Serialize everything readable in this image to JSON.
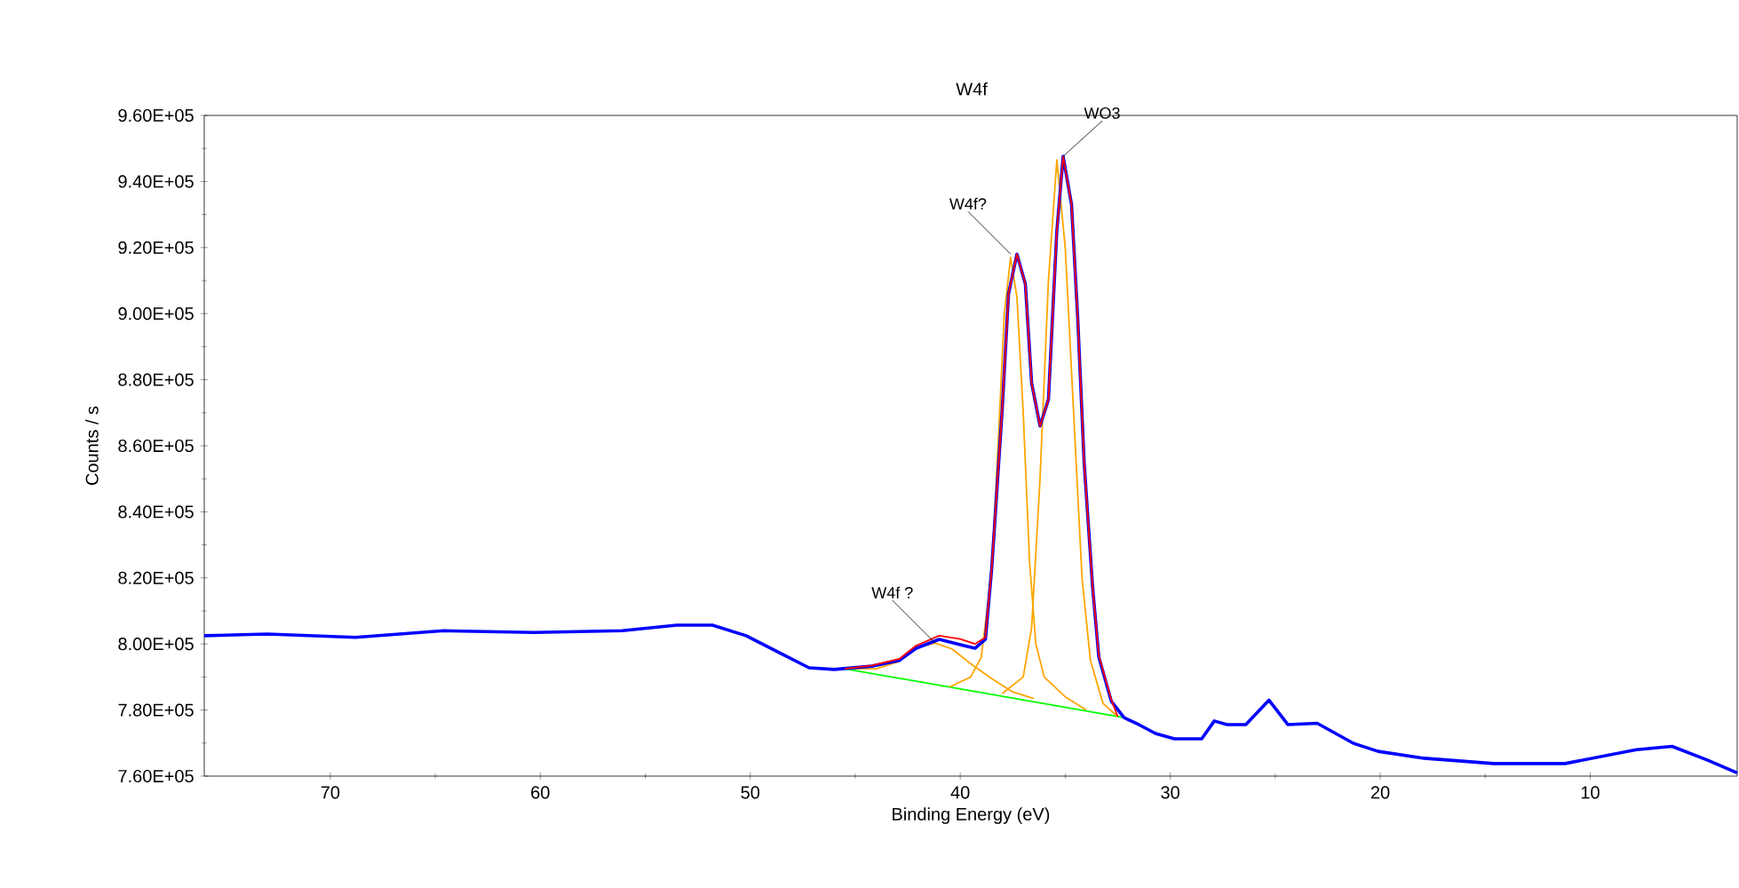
{
  "chart_data": {
    "type": "line",
    "title": "W4f",
    "xlabel": "Binding Energy (eV)",
    "ylabel": "Counts / s",
    "xlim": [
      76,
      3
    ],
    "xticks": [
      70,
      60,
      50,
      40,
      30,
      20,
      10
    ],
    "ylim": [
      760000,
      960000
    ],
    "yticks": [
      {
        "value": 760000,
        "label": "7.60E+05"
      },
      {
        "value": 780000,
        "label": "7.80E+05"
      },
      {
        "value": 800000,
        "label": "8.00E+05"
      },
      {
        "value": 820000,
        "label": "8.20E+05"
      },
      {
        "value": 840000,
        "label": "8.40E+05"
      },
      {
        "value": 860000,
        "label": "8.60E+05"
      },
      {
        "value": 880000,
        "label": "8.80E+05"
      },
      {
        "value": 900000,
        "label": "9.00E+05"
      },
      {
        "value": 920000,
        "label": "9.20E+05"
      },
      {
        "value": 940000,
        "label": "9.40E+05"
      },
      {
        "value": 960000,
        "label": "9.60E+05"
      }
    ],
    "grid": false,
    "marker": "none",
    "line_style": "solid",
    "series": [
      {
        "color": "#00ff00",
        "x": [
          45.5,
          32.2
        ],
        "values": [
          792500,
          777700
        ]
      },
      {
        "color": "#ffa500",
        "x": [
          45.5,
          44,
          43,
          42,
          41.2,
          40.4,
          39.5,
          38.5,
          37.5,
          36.5
        ],
        "values": [
          792500,
          792500,
          794500,
          799000,
          800300,
          798500,
          794000,
          789500,
          785500,
          783500
        ]
      },
      {
        "color": "#ffa500",
        "x": [
          40.5,
          39.5,
          39,
          38.5,
          38.2,
          37.9,
          37.6,
          37.3,
          37,
          36.7,
          36.4,
          36,
          35,
          34
        ],
        "values": [
          787000,
          790000,
          796000,
          822000,
          860000,
          900000,
          917000,
          905000,
          870000,
          825000,
          800000,
          790000,
          784000,
          780000
        ]
      },
      {
        "color": "#ffa500",
        "x": [
          38,
          37,
          36.6,
          36.2,
          35.8,
          35.4,
          35,
          34.6,
          34.2,
          33.8,
          33.2,
          32.5
        ],
        "values": [
          785000,
          790000,
          805000,
          850000,
          910000,
          946500,
          920000,
          870000,
          820000,
          795000,
          782000,
          778000
        ]
      },
      {
        "color": "#0000ff",
        "x": [
          76,
          73.0,
          68.8,
          64.6,
          60.3,
          56.1,
          53.5,
          51.8,
          50.2,
          48.5,
          47.2,
          46.0,
          44.2,
          42.9,
          42.1,
          41.0,
          40.0,
          39.3,
          38.8,
          38.5,
          38.0,
          37.7,
          37.3,
          36.9,
          36.6,
          36.2,
          35.8,
          35.4,
          35.1,
          34.7,
          34.4,
          34.1,
          33.7,
          33.4,
          32.8,
          32.2,
          31.5,
          30.7,
          29.8,
          28.5,
          27.9,
          27.3,
          26.4,
          25.3,
          24.4,
          23.0,
          21.3,
          20.1,
          17.9,
          14.6,
          11.2,
          7.8,
          6.1,
          4.4,
          3
        ],
        "values": [
          802500,
          803000,
          802000,
          804000,
          803500,
          804000,
          805700,
          805700,
          802500,
          797000,
          792800,
          792300,
          793300,
          795000,
          798700,
          801400,
          799800,
          798700,
          801400,
          822900,
          871000,
          906000,
          918000,
          909000,
          879000,
          866000,
          874000,
          925000,
          947600,
          933000,
          898000,
          855000,
          817500,
          796000,
          782600,
          777700,
          775600,
          772900,
          771300,
          771300,
          776700,
          775600,
          775600,
          783000,
          775600,
          776000,
          770000,
          767500,
          765400,
          763800,
          763800,
          768000,
          769000,
          764800,
          761000
        ]
      },
      {
        "color": "#ff0000",
        "x": [
          45.5,
          44.2,
          42.9,
          42.1,
          41.0,
          40.0,
          39.3,
          38.8,
          38.5,
          38.0,
          37.7,
          37.3,
          36.9,
          36.6,
          36.2,
          35.8,
          35.4,
          35.1,
          34.7,
          34.4,
          34.1,
          33.7,
          33.4,
          32.8,
          32.5
        ],
        "values": [
          792500,
          793500,
          795500,
          799500,
          802500,
          801500,
          800000,
          802000,
          823000,
          871000,
          906000,
          918000,
          909000,
          879000,
          866000,
          874000,
          925000,
          947600,
          933000,
          898000,
          855000,
          817500,
          796500,
          783000,
          778000
        ]
      }
    ],
    "annotations": [
      {
        "text": "WO3",
        "x": 35.1,
        "y": 947600
      },
      {
        "text": "W4f?",
        "x": 37.6,
        "y": 918000
      },
      {
        "text": "W4f ?",
        "x": 41.2,
        "y": 800300
      }
    ]
  }
}
